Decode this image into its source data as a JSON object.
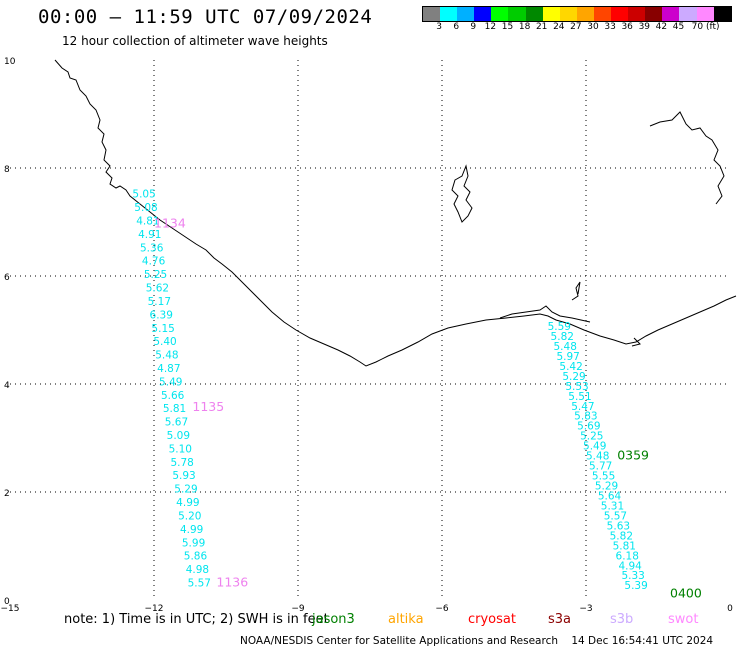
{
  "header": {
    "title": "00:00 – 11:59 UTC 07/09/2024",
    "subtitle": "12 hour collection of altimeter wave heights"
  },
  "colorbar": {
    "colors": [
      "#808080",
      "#00ffff",
      "#00b0ff",
      "#0000ff",
      "#00ff00",
      "#00cc00",
      "#008800",
      "#ffff00",
      "#ffd700",
      "#ffa500",
      "#ff4500",
      "#ff0000",
      "#cc0000",
      "#880000",
      "#cc00cc",
      "#ccaaff",
      "#ff88ff",
      "#000000"
    ],
    "labels": [
      "3",
      "6",
      "9",
      "12",
      "15",
      "18",
      "21",
      "24",
      "27",
      "30",
      "33",
      "36",
      "39",
      "42",
      "45",
      "70 (ft)"
    ]
  },
  "axes": {
    "x_labels": [
      "−15",
      "−12",
      "−9",
      "−6",
      "−3",
      "0"
    ],
    "y_labels": [
      "10",
      "8",
      "6",
      "4",
      "2",
      "0"
    ]
  },
  "track_west": {
    "times": [
      {
        "label": "1134",
        "lon": -12.0,
        "lat": 6.9
      },
      {
        "label": "1135",
        "lon": -11.2,
        "lat": 3.5
      },
      {
        "label": "1136",
        "lon": -10.7,
        "lat": 0.25
      }
    ],
    "values": [
      "5.05",
      "5.08",
      "4.81",
      "4.91",
      "5.36",
      "4.76",
      "5.25",
      "5.62",
      "5.17",
      "6.39",
      "5.15",
      "5.40",
      "5.48",
      "4.87",
      "5.49",
      "5.66",
      "5.81",
      "5.67",
      "5.09",
      "5.10",
      "5.78",
      "5.93",
      "5.29",
      "4.99",
      "5.20",
      "4.99",
      "5.99",
      "5.86",
      "4.98",
      "5.57"
    ],
    "time_color": "#ee82ee"
  },
  "track_east": {
    "times": [
      {
        "label": "0359",
        "lon": -2.35,
        "lat": 2.6
      },
      {
        "label": "0400",
        "lon": -1.25,
        "lat": 0.05
      }
    ],
    "values": [
      "5.59",
      "5.82",
      "5.48",
      "5.97",
      "5.42",
      "5.29",
      "5.53",
      "5.51",
      "5.47",
      "5.83",
      "5.69",
      "5.25",
      "5.49",
      "5.48",
      "5.77",
      "5.55",
      "5.29",
      "5.64",
      "5.31",
      "5.57",
      "5.63",
      "5.82",
      "5.81",
      "6.18",
      "4.94",
      "5.33",
      "5.39"
    ],
    "time_color": "#008000"
  },
  "footer": {
    "note": "note:  1) Time is in UTC;  2) SWH is in feet",
    "legend": [
      {
        "label": "jason3",
        "color": "#008000"
      },
      {
        "label": "altika",
        "color": "#ffa500"
      },
      {
        "label": "cryosat",
        "color": "#ff0000"
      },
      {
        "label": "s3a",
        "color": "#8b0000"
      },
      {
        "label": "s3b",
        "color": "#ccaaff"
      },
      {
        "label": "swot",
        "color": "#ff88ff"
      }
    ],
    "credit": "NOAA/NESDIS Center for Satellite Applications and Research    14 Dec 16:54:41 UTC 2024"
  }
}
